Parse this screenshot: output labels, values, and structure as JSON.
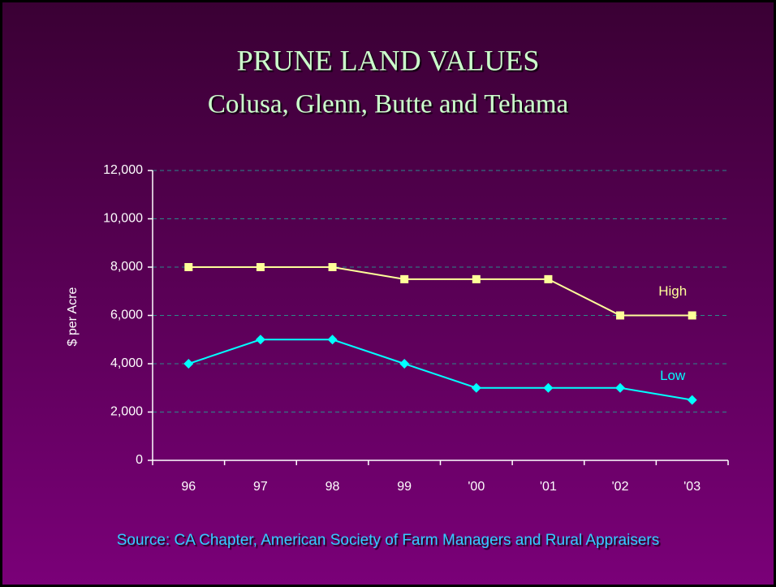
{
  "chart_data": {
    "type": "line",
    "title": "PRUNE LAND VALUES",
    "subtitle": "Colusa, Glenn, Butte and Tehama",
    "ylabel": "$ per Acre",
    "source": "Source: CA Chapter, American Society of Farm Managers and Rural Appraisers",
    "categories": [
      "96",
      "97",
      "98",
      "99",
      "'00",
      "'01",
      "'02",
      "'03"
    ],
    "series": [
      {
        "name": "High",
        "color": "#ffff99",
        "marker": "square",
        "values": [
          8000,
          8000,
          8000,
          7500,
          7500,
          7500,
          6000,
          6000
        ]
      },
      {
        "name": "Low",
        "color": "#00ffff",
        "marker": "diamond",
        "values": [
          4000,
          5000,
          5000,
          4000,
          3000,
          3000,
          3000,
          2500
        ]
      }
    ],
    "ylim": [
      0,
      12000
    ],
    "yticks": [
      0,
      {
        "value": 2000,
        "label": "2,000"
      },
      {
        "value": 4000,
        "label": "4,000"
      },
      {
        "value": 6000,
        "label": "6,000"
      },
      {
        "value": 8000,
        "label": "8,000"
      },
      {
        "value": 10000,
        "label": "10,000"
      },
      {
        "value": 12000,
        "label": "12,000"
      }
    ],
    "grid": true
  }
}
